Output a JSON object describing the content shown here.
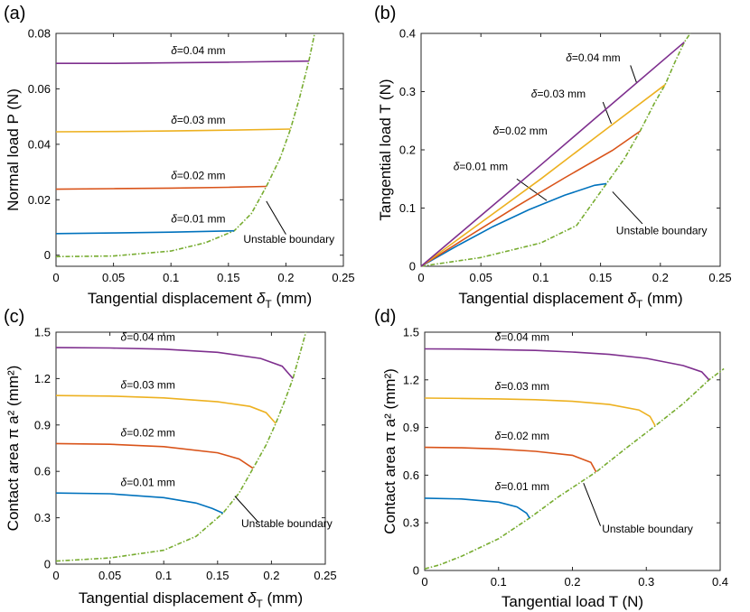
{
  "figure": {
    "colors": {
      "d001": "#0072BD",
      "d002": "#D95319",
      "d003": "#EDB120",
      "d004": "#7E2F8E",
      "boundary": "#77AC30",
      "axis": "#262626",
      "annotation": "#000000"
    }
  },
  "chart_data": [
    {
      "id": "a",
      "panel_label": "(a)",
      "type": "line",
      "xlabel": "Tangential displacement δ_T (mm)",
      "xlabel_main": "Tangential displacement ",
      "xlabel_symbol": "δ",
      "xlabel_sub": "T",
      "xlabel_tail": " (mm)",
      "ylabel": "Normal load P (N)",
      "xlim": [
        0,
        0.25
      ],
      "ylim": [
        -0.004,
        0.08
      ],
      "xticks": [
        0,
        0.05,
        0.1,
        0.15,
        0.2,
        0.25
      ],
      "xtick_labels": [
        "0",
        "0.05",
        "0.1",
        "0.15",
        "0.2",
        "0.25"
      ],
      "yticks": [
        0,
        0.02,
        0.04,
        0.06,
        0.08
      ],
      "ytick_labels": [
        "0",
        "0.02",
        "0.04",
        "0.06",
        "0.08"
      ],
      "series": [
        {
          "name": "δ=0.01 mm",
          "symbol": "δ",
          "label": "=0.01 mm",
          "color_key": "d001",
          "label_at": [
            0.1,
            0.0118
          ],
          "x": [
            0,
            0.05,
            0.1,
            0.155
          ],
          "y": [
            0.0078,
            0.008,
            0.0083,
            0.0088
          ]
        },
        {
          "name": "δ=0.02 mm",
          "symbol": "δ",
          "label": "=0.02 mm",
          "color_key": "d002",
          "label_at": [
            0.1,
            0.0275
          ],
          "x": [
            0,
            0.05,
            0.1,
            0.15,
            0.183
          ],
          "y": [
            0.0238,
            0.024,
            0.0242,
            0.0245,
            0.0248
          ]
        },
        {
          "name": "δ=0.03 mm",
          "symbol": "δ",
          "label": "=0.03 mm",
          "color_key": "d003",
          "label_at": [
            0.1,
            0.0475
          ],
          "x": [
            0,
            0.05,
            0.1,
            0.15,
            0.204
          ],
          "y": [
            0.0445,
            0.0446,
            0.0448,
            0.0451,
            0.0455
          ]
        },
        {
          "name": "δ=0.04 mm",
          "symbol": "δ",
          "label": "=0.04 mm",
          "color_key": "d004",
          "label_at": [
            0.1,
            0.0725
          ],
          "x": [
            0,
            0.05,
            0.1,
            0.15,
            0.22
          ],
          "y": [
            0.0692,
            0.0692,
            0.0694,
            0.0696,
            0.07
          ]
        }
      ],
      "boundary": {
        "name": "Unstable boundary",
        "color_key": "boundary",
        "x": [
          0,
          0.05,
          0.1,
          0.13,
          0.155,
          0.17,
          0.183,
          0.195,
          0.204,
          0.212,
          0.22,
          0.225
        ],
        "y": [
          -0.0005,
          -0.0003,
          0.0015,
          0.0045,
          0.0088,
          0.015,
          0.0248,
          0.035,
          0.0455,
          0.057,
          0.07,
          0.08
        ],
        "label": "Unstable boundary",
        "label_at": [
          0.163,
          0.0045
        ],
        "arrow_from": [
          0.2,
          0.0075
        ],
        "arrow_to": [
          0.183,
          0.0195
        ]
      }
    },
    {
      "id": "b",
      "panel_label": "(b)",
      "type": "line",
      "xlabel": "Tangential displacement δ_T (mm)",
      "xlabel_main": "Tangential displacement ",
      "xlabel_symbol": "δ",
      "xlabel_sub": "T",
      "xlabel_tail": " (mm)",
      "ylabel": "Tangential load T (N)",
      "xlim": [
        0,
        0.25
      ],
      "ylim": [
        0,
        0.4
      ],
      "xticks": [
        0,
        0.05,
        0.1,
        0.15,
        0.2,
        0.25
      ],
      "xtick_labels": [
        "0",
        "0.05",
        "0.1",
        "0.15",
        "0.2",
        "0.25"
      ],
      "yticks": [
        0,
        0.1,
        0.2,
        0.3,
        0.4
      ],
      "ytick_labels": [
        "0",
        "0.1",
        "0.2",
        "0.3",
        "0.4"
      ],
      "series": [
        {
          "name": "δ=0.01 mm",
          "symbol": "δ",
          "label": "=0.01 mm",
          "color_key": "d001",
          "label_at": [
            0.027,
            0.165
          ],
          "x": [
            0,
            0.03,
            0.06,
            0.09,
            0.12,
            0.145,
            0.155
          ],
          "y": [
            0,
            0.035,
            0.068,
            0.097,
            0.122,
            0.139,
            0.142
          ],
          "arrow_from": [
            0.08,
            0.15
          ],
          "arrow_to": [
            0.105,
            0.113
          ]
        },
        {
          "name": "δ=0.02 mm",
          "symbol": "δ",
          "label": "=0.02 mm",
          "color_key": "d002",
          "label_at": [
            0.06,
            0.226
          ],
          "x": [
            0,
            0.04,
            0.08,
            0.12,
            0.16,
            0.183
          ],
          "y": [
            0,
            0.052,
            0.103,
            0.152,
            0.199,
            0.232
          ]
        },
        {
          "name": "δ=0.03 mm",
          "symbol": "δ",
          "label": "=0.03 mm",
          "color_key": "d003",
          "label_at": [
            0.092,
            0.29
          ],
          "x": [
            0,
            0.05,
            0.1,
            0.15,
            0.204
          ],
          "y": [
            0,
            0.075,
            0.15,
            0.228,
            0.312
          ],
          "arrow_from": [
            0.152,
            0.282
          ],
          "arrow_to": [
            0.159,
            0.245
          ]
        },
        {
          "name": "δ=0.04 mm",
          "symbol": "δ",
          "label": "=0.04 mm",
          "color_key": "d004",
          "label_at": [
            0.121,
            0.352
          ],
          "x": [
            0,
            0.05,
            0.1,
            0.15,
            0.22
          ],
          "y": [
            0,
            0.087,
            0.174,
            0.262,
            0.385
          ],
          "arrow_from": [
            0.175,
            0.345
          ],
          "arrow_to": [
            0.18,
            0.316
          ]
        }
      ],
      "boundary": {
        "name": "Unstable boundary",
        "color_key": "boundary",
        "x": [
          0,
          0.05,
          0.1,
          0.13,
          0.155,
          0.17,
          0.183,
          0.195,
          0.204,
          0.212,
          0.22,
          0.225
        ],
        "y": [
          0,
          0.015,
          0.04,
          0.07,
          0.142,
          0.185,
          0.232,
          0.28,
          0.312,
          0.35,
          0.385,
          0.4
        ],
        "label": "Unstable boundary",
        "label_at": [
          0.163,
          0.055
        ],
        "arrow_from": [
          0.185,
          0.073
        ],
        "arrow_to": [
          0.16,
          0.128
        ]
      }
    },
    {
      "id": "c",
      "panel_label": "(c)",
      "type": "line",
      "xlabel": "Tangential displacement δ_T (mm)",
      "xlabel_main": "Tangential displacement ",
      "xlabel_symbol": "δ",
      "xlabel_sub": "T",
      "xlabel_tail": " (mm)",
      "ylabel": "Contact area π a² (mm²)",
      "xlim": [
        0,
        0.25
      ],
      "ylim": [
        0,
        1.5
      ],
      "xticks": [
        0,
        0.05,
        0.1,
        0.15,
        0.2,
        0.25
      ],
      "xtick_labels": [
        "0",
        "0.05",
        "0.1",
        "0.15",
        "0.2",
        "0.25"
      ],
      "yticks": [
        0,
        0.3,
        0.6,
        0.9,
        1.2,
        1.5
      ],
      "ytick_labels": [
        "0",
        "0.3",
        "0.6",
        "0.9",
        "1.2",
        "1.5"
      ],
      "series": [
        {
          "name": "δ=0.01 mm",
          "symbol": "δ",
          "label": "=0.01 mm",
          "color_key": "d001",
          "label_at": [
            0.06,
            0.505
          ],
          "x": [
            0,
            0.05,
            0.1,
            0.13,
            0.145,
            0.155
          ],
          "y": [
            0.46,
            0.455,
            0.43,
            0.395,
            0.36,
            0.33
          ]
        },
        {
          "name": "δ=0.02 mm",
          "symbol": "δ",
          "label": "=0.02 mm",
          "color_key": "d002",
          "label_at": [
            0.06,
            0.825
          ],
          "x": [
            0,
            0.05,
            0.1,
            0.15,
            0.17,
            0.183
          ],
          "y": [
            0.78,
            0.775,
            0.76,
            0.72,
            0.68,
            0.62
          ]
        },
        {
          "name": "δ=0.03 mm",
          "symbol": "δ",
          "label": "=0.03 mm",
          "color_key": "d003",
          "label_at": [
            0.06,
            1.135
          ],
          "x": [
            0,
            0.05,
            0.1,
            0.15,
            0.18,
            0.195,
            0.204
          ],
          "y": [
            1.09,
            1.087,
            1.075,
            1.05,
            1.02,
            0.98,
            0.91
          ]
        },
        {
          "name": "δ=0.04 mm",
          "symbol": "δ",
          "label": "=0.04 mm",
          "color_key": "d004",
          "label_at": [
            0.06,
            1.445
          ],
          "x": [
            0,
            0.05,
            0.1,
            0.15,
            0.19,
            0.21,
            0.22
          ],
          "y": [
            1.4,
            1.398,
            1.39,
            1.37,
            1.33,
            1.28,
            1.2
          ]
        }
      ],
      "boundary": {
        "name": "Unstable boundary",
        "color_key": "boundary",
        "x": [
          0,
          0.05,
          0.1,
          0.13,
          0.155,
          0.17,
          0.183,
          0.195,
          0.204,
          0.212,
          0.22,
          0.232
        ],
        "y": [
          0.02,
          0.04,
          0.09,
          0.18,
          0.33,
          0.46,
          0.62,
          0.77,
          0.91,
          1.05,
          1.2,
          1.5
        ],
        "label": "Unstable boundary",
        "label_at": [
          0.172,
          0.24
        ],
        "arrow_from": [
          0.188,
          0.27
        ],
        "arrow_to": [
          0.166,
          0.44
        ]
      }
    },
    {
      "id": "d",
      "panel_label": "(d)",
      "type": "line",
      "xlabel": "Tangential load T (N)",
      "xlabel_main": "Tangential load T (N)",
      "xlabel_symbol": "",
      "xlabel_sub": "",
      "xlabel_tail": "",
      "ylabel": "Contact area π a² (mm²)",
      "xlim": [
        0,
        0.4
      ],
      "ylim": [
        0,
        1.5
      ],
      "xticks": [
        0,
        0.1,
        0.2,
        0.3,
        0.4
      ],
      "xtick_labels": [
        "0",
        "0.1",
        "0.2",
        "0.3",
        "0.4"
      ],
      "yticks": [
        0,
        0.3,
        0.6,
        0.9,
        1.2,
        1.5
      ],
      "ytick_labels": [
        "0",
        "0.3",
        "0.6",
        "0.9",
        "1.2",
        "1.5"
      ],
      "series": [
        {
          "name": "δ=0.01 mm",
          "symbol": "δ",
          "label": "=0.01 mm",
          "color_key": "d001",
          "label_at": [
            0.095,
            0.505
          ],
          "x": [
            0,
            0.05,
            0.1,
            0.125,
            0.138,
            0.142
          ],
          "y": [
            0.455,
            0.45,
            0.43,
            0.4,
            0.36,
            0.33
          ]
        },
        {
          "name": "δ=0.02 mm",
          "symbol": "δ",
          "label": "=0.02 mm",
          "color_key": "d002",
          "label_at": [
            0.095,
            0.825
          ],
          "x": [
            0,
            0.05,
            0.1,
            0.15,
            0.2,
            0.225,
            0.232
          ],
          "y": [
            0.775,
            0.772,
            0.765,
            0.75,
            0.725,
            0.68,
            0.62
          ]
        },
        {
          "name": "δ=0.03 mm",
          "symbol": "δ",
          "label": "=0.03 mm",
          "color_key": "d003",
          "label_at": [
            0.095,
            1.135
          ],
          "x": [
            0,
            0.05,
            0.1,
            0.15,
            0.2,
            0.25,
            0.29,
            0.305,
            0.312
          ],
          "y": [
            1.085,
            1.083,
            1.08,
            1.075,
            1.065,
            1.045,
            1.01,
            0.97,
            0.91
          ]
        },
        {
          "name": "δ=0.04 mm",
          "symbol": "δ",
          "label": "=0.04 mm",
          "color_key": "d004",
          "label_at": [
            0.095,
            1.445
          ],
          "x": [
            0,
            0.05,
            0.1,
            0.15,
            0.2,
            0.25,
            0.3,
            0.35,
            0.375,
            0.385
          ],
          "y": [
            1.395,
            1.394,
            1.39,
            1.385,
            1.375,
            1.36,
            1.335,
            1.29,
            1.25,
            1.2
          ]
        }
      ],
      "boundary": {
        "name": "Unstable boundary",
        "color_key": "boundary",
        "x": [
          0,
          0.02,
          0.05,
          0.1,
          0.142,
          0.18,
          0.232,
          0.27,
          0.312,
          0.35,
          0.385,
          0.405
        ],
        "y": [
          0.01,
          0.035,
          0.09,
          0.2,
          0.33,
          0.46,
          0.62,
          0.76,
          0.91,
          1.05,
          1.2,
          1.27
        ],
        "label": "Unstable boundary",
        "label_at": [
          0.24,
          0.24
        ],
        "arrow_from": [
          0.238,
          0.28
        ],
        "arrow_to": [
          0.215,
          0.55
        ]
      }
    }
  ]
}
